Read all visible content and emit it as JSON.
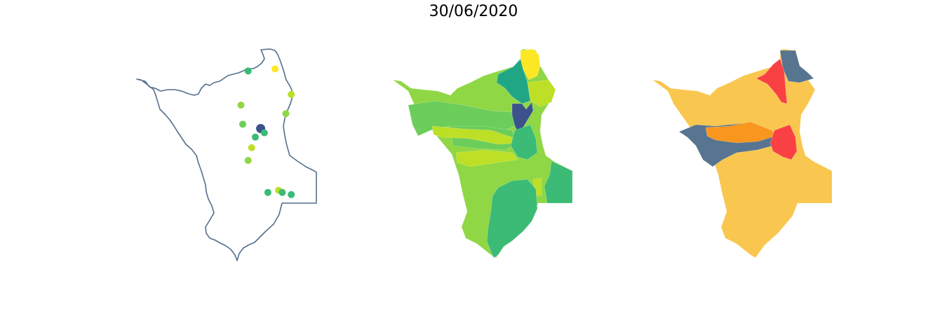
{
  "title": "30/06/2020",
  "colors": {
    "outline": "#566f8b",
    "viridis_dark": "#3b528b",
    "viridis_teal": "#21a685",
    "viridis_green": "#3bbb75",
    "viridis_lightgreen": "#6ccd5a",
    "viridis_limegreen": "#8fd744",
    "viridis_yellowgreen": "#bddf26",
    "viridis_yellow": "#fde725",
    "risk_low": "#f9c74f",
    "risk_medium": "#f8961e",
    "risk_high": "#f94144",
    "risk_none": "#577590"
  },
  "stations": [
    {
      "lon": 0.62,
      "lat": 0.11,
      "color": "#3bbb75"
    },
    {
      "lon": 0.77,
      "lat": 0.1,
      "color": "#fde725"
    },
    {
      "lon": 0.86,
      "lat": 0.22,
      "color": "#bddf26"
    },
    {
      "lon": 0.58,
      "lat": 0.27,
      "color": "#8fd744"
    },
    {
      "lon": 0.83,
      "lat": 0.31,
      "color": "#8fd744"
    },
    {
      "lon": 0.59,
      "lat": 0.36,
      "color": "#6ccd5a"
    },
    {
      "lon": 0.69,
      "lat": 0.38,
      "color": "#3b528b"
    },
    {
      "lon": 0.71,
      "lat": 0.4,
      "color": "#3bbb75"
    },
    {
      "lon": 0.66,
      "lat": 0.42,
      "color": "#3bbb75"
    },
    {
      "lon": 0.64,
      "lat": 0.47,
      "color": "#bddf26"
    },
    {
      "lon": 0.62,
      "lat": 0.53,
      "color": "#8fd744"
    },
    {
      "lon": 0.73,
      "lat": 0.68,
      "color": "#3bbb75"
    },
    {
      "lon": 0.79,
      "lat": 0.67,
      "color": "#bddf26"
    },
    {
      "lon": 0.81,
      "lat": 0.68,
      "color": "#3bbb75"
    },
    {
      "lon": 0.86,
      "lat": 0.69,
      "color": "#3bbb75"
    }
  ]
}
